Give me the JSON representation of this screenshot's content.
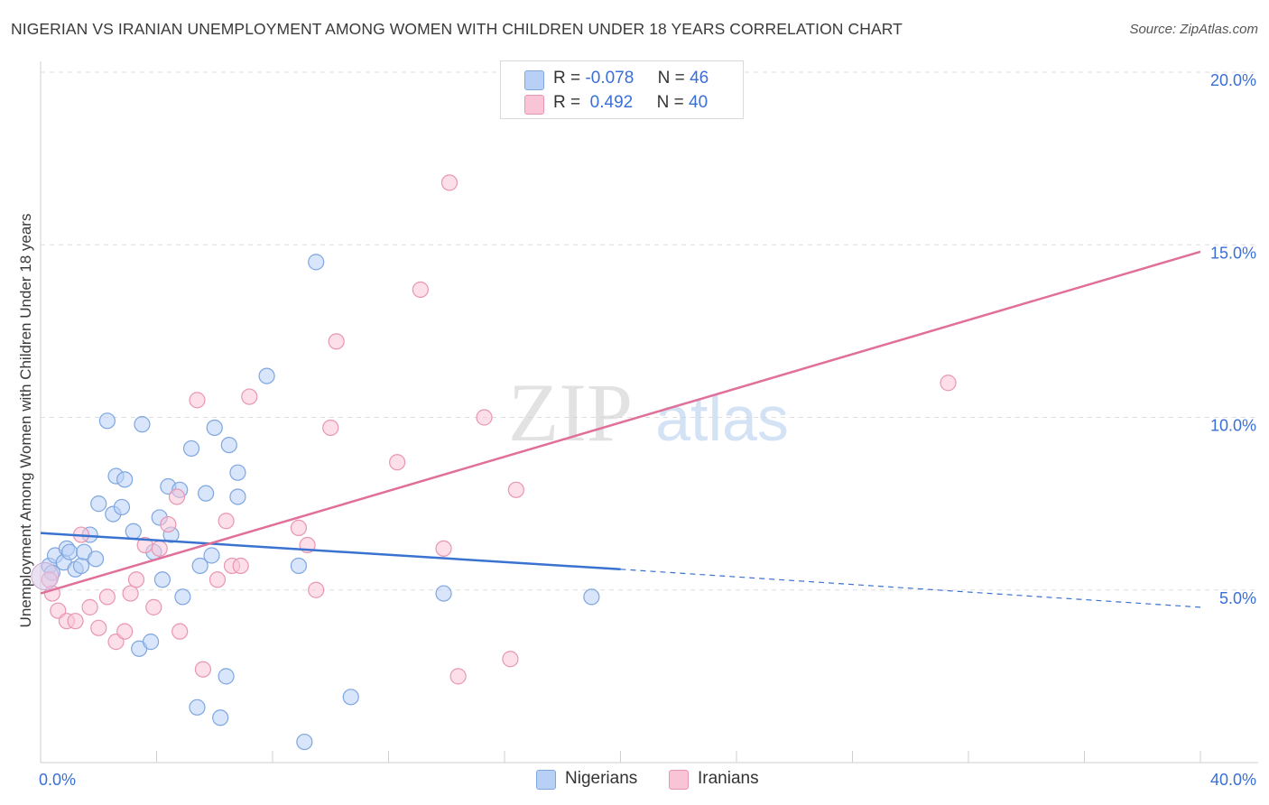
{
  "header": {
    "title": "NIGERIAN VS IRANIAN UNEMPLOYMENT AMONG WOMEN WITH CHILDREN UNDER 18 YEARS CORRELATION CHART",
    "source": "Source: ZipAtlas.com"
  },
  "legend": {
    "rows": [
      {
        "r_label": "R =",
        "r_value": "-0.078",
        "n_label": "N =",
        "n_value": "46"
      },
      {
        "r_label": "R =",
        "r_value": " 0.492",
        "n_label": "N =",
        "n_value": "40"
      }
    ]
  },
  "watermark": {
    "zip": "ZIP",
    "atlas": "atlas"
  },
  "colors": {
    "nigerians_fill": "#b8d0f5",
    "nigerians_stroke": "#7ea6e0",
    "nigerians_line": "#3a72d0",
    "iranians_fill": "#f9c4d5",
    "iranians_stroke": "#e896b2",
    "iranians_line": "#e0709a",
    "axis_label": "#3a6fd8",
    "grid": "#dedede"
  },
  "chart_data": {
    "type": "scatter",
    "title": "NIGERIAN VS IRANIAN UNEMPLOYMENT AMONG WOMEN WITH CHILDREN UNDER 18 YEARS CORRELATION CHART",
    "xlabel": "",
    "ylabel": "Unemployment Among Women with Children Under 18 years",
    "xlim": [
      0,
      40
    ],
    "ylim": [
      0,
      20
    ],
    "x_tick_labels": [
      {
        "value": 0,
        "label": "0.0%"
      },
      {
        "value": 40,
        "label": "40.0%"
      }
    ],
    "y_tick_labels": [
      {
        "value": 5,
        "label": "5.0%"
      },
      {
        "value": 10,
        "label": "10.0%"
      },
      {
        "value": 15,
        "label": "15.0%"
      },
      {
        "value": 20,
        "label": "20.0%"
      }
    ],
    "x_minor_ticks": [
      0,
      4,
      8,
      12,
      16,
      20,
      24,
      28,
      32,
      36,
      40
    ],
    "series": [
      {
        "name": "Nigerians",
        "r": -0.078,
        "n": 46,
        "trend": {
          "x0": 0,
          "y0": 6.65,
          "x1": 20,
          "y1": 5.6,
          "dashed_to_x": 40,
          "dashed_to_y": 4.5
        },
        "points": [
          [
            0.3,
            5.7
          ],
          [
            0.4,
            5.5
          ],
          [
            0.5,
            6.0
          ],
          [
            0.8,
            5.8
          ],
          [
            0.9,
            6.2
          ],
          [
            1.0,
            6.1
          ],
          [
            1.2,
            5.6
          ],
          [
            1.4,
            5.7
          ],
          [
            1.5,
            6.1
          ],
          [
            1.7,
            6.6
          ],
          [
            1.9,
            5.9
          ],
          [
            2.0,
            7.5
          ],
          [
            2.3,
            9.9
          ],
          [
            2.5,
            7.2
          ],
          [
            2.6,
            8.3
          ],
          [
            2.8,
            7.4
          ],
          [
            2.9,
            8.2
          ],
          [
            3.2,
            6.7
          ],
          [
            3.4,
            3.3
          ],
          [
            3.5,
            9.8
          ],
          [
            3.8,
            3.5
          ],
          [
            3.9,
            6.1
          ],
          [
            4.1,
            7.1
          ],
          [
            4.2,
            5.3
          ],
          [
            4.4,
            8.0
          ],
          [
            4.5,
            6.6
          ],
          [
            4.8,
            7.9
          ],
          [
            4.9,
            4.8
          ],
          [
            5.2,
            9.1
          ],
          [
            5.4,
            1.6
          ],
          [
            5.5,
            5.7
          ],
          [
            5.7,
            7.8
          ],
          [
            5.9,
            6.0
          ],
          [
            6.0,
            9.7
          ],
          [
            6.2,
            1.3
          ],
          [
            6.4,
            2.5
          ],
          [
            6.5,
            9.2
          ],
          [
            6.8,
            7.7
          ],
          [
            6.8,
            8.4
          ],
          [
            7.8,
            11.2
          ],
          [
            8.9,
            5.7
          ],
          [
            9.1,
            0.6
          ],
          [
            9.5,
            14.5
          ],
          [
            10.7,
            1.9
          ],
          [
            13.9,
            4.9
          ],
          [
            19.0,
            4.8
          ]
        ]
      },
      {
        "name": "Iranians",
        "r": 0.492,
        "n": 40,
        "trend": {
          "x0": 0,
          "y0": 4.9,
          "x1": 40,
          "y1": 14.8
        },
        "points": [
          [
            0.3,
            5.3
          ],
          [
            0.4,
            4.9
          ],
          [
            0.6,
            4.4
          ],
          [
            0.9,
            4.1
          ],
          [
            1.2,
            4.1
          ],
          [
            1.4,
            6.6
          ],
          [
            1.7,
            4.5
          ],
          [
            2.0,
            3.9
          ],
          [
            2.3,
            4.8
          ],
          [
            2.6,
            3.5
          ],
          [
            2.9,
            3.8
          ],
          [
            3.1,
            4.9
          ],
          [
            3.3,
            5.3
          ],
          [
            3.6,
            6.3
          ],
          [
            3.9,
            4.5
          ],
          [
            4.1,
            6.2
          ],
          [
            4.4,
            6.9
          ],
          [
            4.7,
            7.7
          ],
          [
            4.8,
            3.8
          ],
          [
            5.4,
            10.5
          ],
          [
            5.6,
            2.7
          ],
          [
            6.1,
            5.3
          ],
          [
            6.4,
            7.0
          ],
          [
            6.6,
            5.7
          ],
          [
            6.9,
            5.7
          ],
          [
            7.2,
            10.6
          ],
          [
            8.9,
            6.8
          ],
          [
            9.2,
            6.3
          ],
          [
            9.5,
            5.0
          ],
          [
            10.0,
            9.7
          ],
          [
            10.2,
            12.2
          ],
          [
            12.3,
            8.7
          ],
          [
            13.1,
            13.7
          ],
          [
            13.9,
            6.2
          ],
          [
            14.1,
            16.8
          ],
          [
            14.4,
            2.5
          ],
          [
            15.3,
            10.0
          ],
          [
            16.2,
            3.0
          ],
          [
            16.4,
            7.9
          ],
          [
            31.3,
            11.0
          ]
        ]
      }
    ]
  }
}
